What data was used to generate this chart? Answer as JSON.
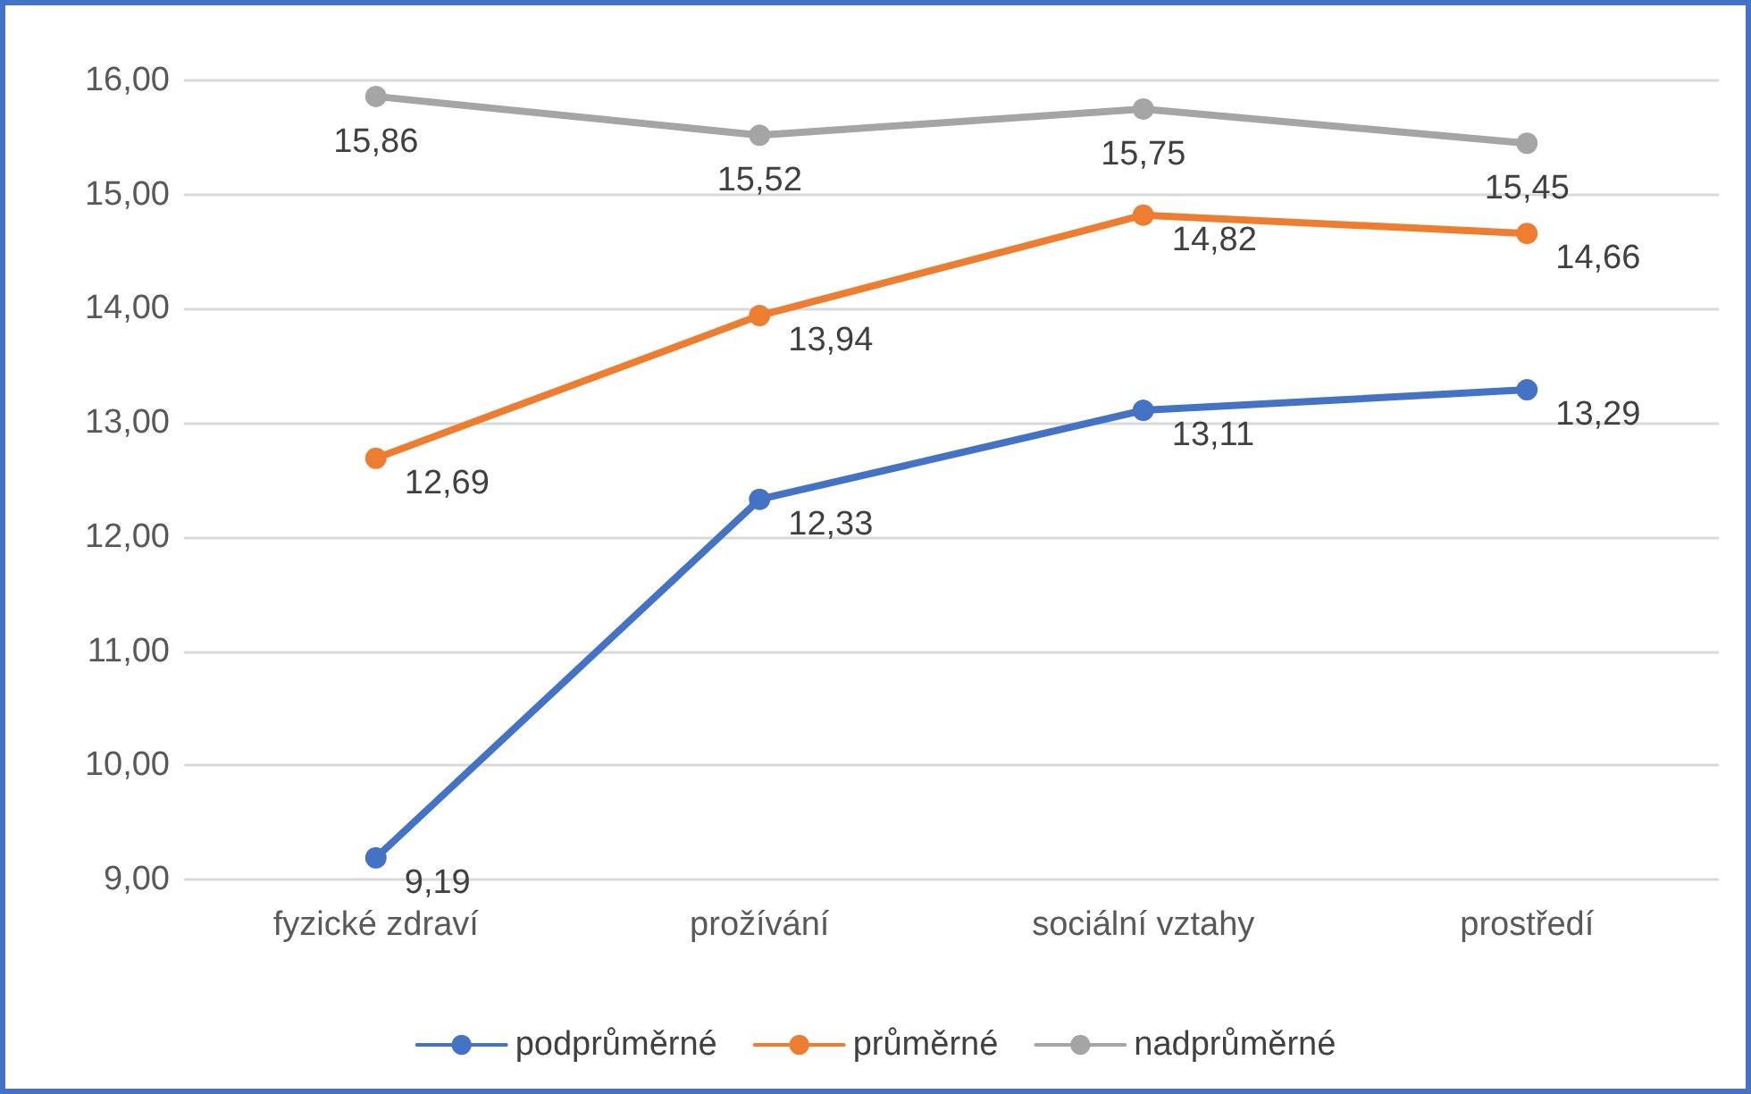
{
  "chart_data": {
    "type": "line",
    "categories": [
      "fyzické zdraví",
      "prožívání",
      "sociální vztahy",
      "prostředí"
    ],
    "series": [
      {
        "name": "podprůměrné",
        "color": "#4472c4",
        "values": [
          9.19,
          12.33,
          13.11,
          13.29
        ],
        "value_labels": [
          "9,19",
          "12,33",
          "13,11",
          "13,29"
        ]
      },
      {
        "name": "průměrné",
        "color": "#ed7d31",
        "values": [
          12.69,
          13.94,
          14.82,
          14.66
        ],
        "value_labels": [
          "12,69",
          "13,94",
          "14,82",
          "14,66"
        ]
      },
      {
        "name": "nadprůměrné",
        "color": "#a5a5a5",
        "values": [
          15.86,
          15.52,
          15.75,
          15.45
        ],
        "value_labels": [
          "15,86",
          "15,52",
          "15,75",
          "15,45"
        ]
      }
    ],
    "ylim": [
      9,
      16
    ],
    "yticks": [
      {
        "value": 9,
        "label": "9,00"
      },
      {
        "value": 10,
        "label": "10,00"
      },
      {
        "value": 11,
        "label": "11,00"
      },
      {
        "value": 12,
        "label": "12,00"
      },
      {
        "value": 13,
        "label": "13,00"
      },
      {
        "value": 14,
        "label": "14,00"
      },
      {
        "value": 15,
        "label": "15,00"
      },
      {
        "value": 16,
        "label": "16,00"
      }
    ],
    "grid": "y",
    "legend": "bottom",
    "marker": "circle",
    "line_style": "solid"
  }
}
